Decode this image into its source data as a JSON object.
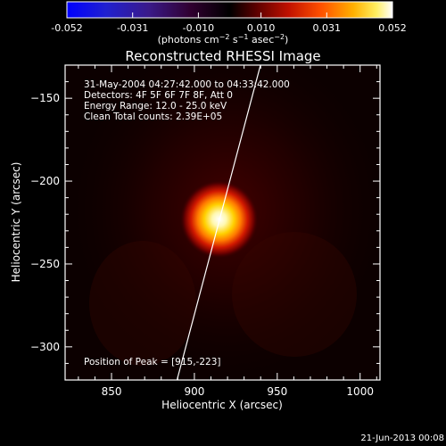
{
  "title": "Reconstructed RHESSI Image",
  "footer_date": "21-Jun-2013 00:08",
  "colorbar": {
    "ticks": [
      "-0.052",
      "-0.031",
      "-0.010",
      "0.010",
      "0.031",
      "0.052"
    ],
    "tick_values": [
      -0.052,
      -0.031,
      -0.01,
      0.01,
      0.031,
      0.052
    ],
    "range": [
      -0.052,
      0.052
    ]
  },
  "annotations": {
    "time": "31-May-2004 04:27:42.000 to 04:33:42.000",
    "detectors": "Detectors: 4F 5F 6F 7F 8F, Att 0",
    "energy": "Energy Range: 12.0 - 25.0 keV",
    "clean": "Clean    Total counts: 2.39E+05",
    "peak": "Position of Peak = [915,-223]"
  },
  "chart_data": {
    "type": "heatmap",
    "title": "Reconstructed RHESSI Image",
    "xlabel": "Heliocentric X (arcsec)",
    "ylabel": "Heliocentric Y (arcsec)",
    "colorbar_label": "(photons cm^-2 s^-1 asec^-2)",
    "colorbar_range": [
      -0.052,
      0.052
    ],
    "xlim": [
      822,
      1012
    ],
    "ylim": [
      -320,
      -130
    ],
    "x_ticks": [
      850,
      900,
      950,
      1000
    ],
    "x_tick_labels": [
      "850",
      "900",
      "950",
      "1000"
    ],
    "y_ticks": [
      -150,
      -200,
      -250,
      -300
    ],
    "y_tick_labels": [
      "−150",
      "−200",
      "−250",
      "−300"
    ],
    "peak": {
      "x": 915,
      "y": -223,
      "value": 0.052
    },
    "limb_line": [
      {
        "x": 889,
        "y": -322
      },
      {
        "x": 942,
        "y": -122
      }
    ],
    "colormap": "hot"
  }
}
